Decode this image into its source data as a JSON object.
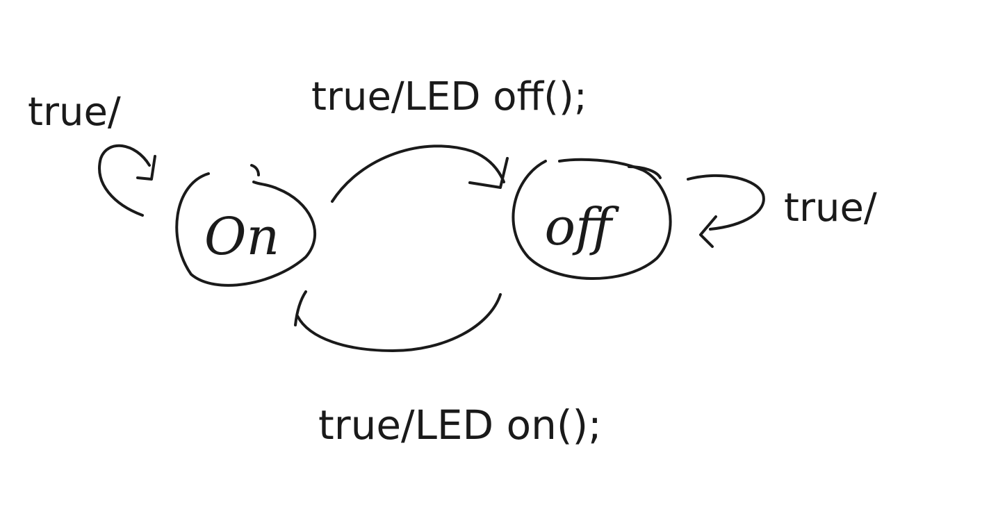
{
  "states": {
    "on": {
      "label": "On"
    },
    "off": {
      "label": "off"
    }
  },
  "transitions": {
    "on_self": {
      "label": "true/"
    },
    "on_to_off": {
      "label": "true/LED off();"
    },
    "off_self": {
      "label": "true/"
    },
    "off_to_on": {
      "label": "true/LED on();"
    }
  },
  "colors": {
    "ink": "#1a1a1a",
    "background": "#ffffff"
  }
}
